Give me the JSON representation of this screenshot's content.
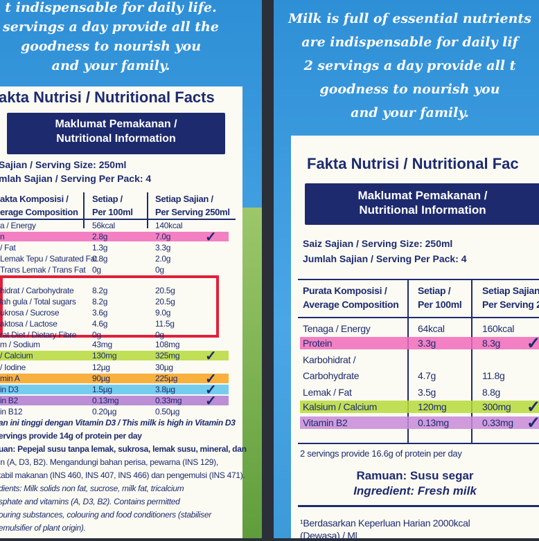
{
  "left": {
    "tagline": [
      "t indispensable for daily life.",
      "servings a day provide all the",
      "goodness to nourish you",
      "and your family."
    ],
    "facts_title": "akta Nutrisi / Nutritional Facts",
    "info_title": [
      "Maklumat Pemakanan /",
      "Nutritional Information"
    ],
    "serving": [
      "Sajian / Serving Size: 250ml",
      "mlah Sajian / Serving Per Pack: 4"
    ],
    "header": [
      [
        "akta Komposisi /",
        "erage Composition"
      ],
      [
        "Setiap /",
        "Per 100ml"
      ],
      [
        "Setiap Sajian /",
        "Per Serving 250ml"
      ]
    ],
    "rows": [
      {
        "cells": [
          "a / Energy",
          "56kcal",
          "140kcal"
        ]
      },
      {
        "cells": [
          "n",
          "2.8g",
          "7.0g"
        ],
        "highlight": "#f06aba"
      },
      {
        "cells": [
          "/ Fat",
          "1.3g",
          "3.3g"
        ]
      },
      {
        "cells": [
          "Lemak Tepu / Saturated Fat",
          "0.8g",
          "2.0g"
        ]
      },
      {
        "cells": [
          "Trans Lemak / Trans Fat",
          "0g",
          "0g"
        ]
      },
      {
        "cells": [
          "hidrat / Carbohydrate",
          "8.2g",
          "20.5g"
        ]
      },
      {
        "cells": [
          "lah gula / Total sugars",
          "8.2g",
          "20.5g"
        ]
      },
      {
        "cells": [
          "ukrosa / Sucrose",
          "3.6g",
          "9.0g"
        ]
      },
      {
        "cells": [
          "aktosa / Lactose",
          "4.6g",
          "11.5g"
        ]
      },
      {
        "cells": [
          "rat Diet / Dietary Fibre",
          "0g",
          "0g"
        ]
      },
      {
        "cells": [
          "m / Sodium",
          "43mg",
          "108mg"
        ]
      },
      {
        "cells": [
          "/ Calcium",
          "130mg",
          "325mg"
        ],
        "highlight": "#b6d93a"
      },
      {
        "cells": [
          "/ Iodine",
          "12µg",
          "30µg"
        ]
      },
      {
        "cells": [
          "min A",
          "90µg",
          "225µg"
        ],
        "highlight": "#f7a21e"
      },
      {
        "cells": [
          "in D3",
          "1.5µg",
          "3.8µg"
        ],
        "highlight": "#5cc3ec"
      },
      {
        "cells": [
          "in B2",
          "0.13mg",
          "0.33mg"
        ],
        "highlight": "#b07ad0"
      },
      {
        "cells": [
          "in B12",
          "0.20µg",
          "0.50µg"
        ]
      }
    ],
    "notes": [
      "an ini tinggi dengan Vitamin D3 / This milk is high in Vitamin D3",
      "ervings provide 14g of protein per day",
      "uan: Pepejal susu tanpa lemak, sukrosa, lemak susu, mineral, dan",
      "in (A, D3, B2). Mengandungi bahan perisa, pewarna (INS 129),",
      "tabil makanan (INS 460, INS 407, INS 466) dan pengemulsi (INS 471).",
      "dients: Milk solids non fat, sucrose, milk fat, tricalcium",
      "sphate and vitamins (A, D3, B2). Contains permitted",
      "ouring substances, colouring and food conditioners (stabiliser",
      "emulsifier of plant origin)."
    ]
  },
  "right": {
    "tagline": [
      "Milk is full of essential nutrients",
      "are indispensable for daily lif",
      "2 servings a day provide all t",
      "goodness to nourish you",
      "and your family."
    ],
    "facts_title": "Fakta Nutrisi / Nutritional Fac",
    "info_title": [
      "Maklumat Pemakanan /",
      "Nutritional Information"
    ],
    "serving": [
      "Saiz Sajian / Serving Size: 250ml",
      "Jumlah Sajian / Serving Per Pack: 4"
    ],
    "header": [
      [
        "Purata Komposisi /",
        "Average Composition"
      ],
      [
        "Setiap /",
        "Per 100ml"
      ],
      [
        "Setiap Sajian",
        "Per Serving 2"
      ]
    ],
    "rows": [
      {
        "cells": [
          "Tenaga / Energy",
          "64kcal",
          "160kcal"
        ]
      },
      {
        "cells": [
          "Protein",
          "3.3g",
          "8.3g"
        ],
        "highlight": "#f06aba"
      },
      {
        "cells": [
          "Karbohidrat /",
          "",
          ""
        ]
      },
      {
        "cells": [
          "Carbohydrate",
          "4.7g",
          "11.8g"
        ]
      },
      {
        "cells": [
          "Lemak / Fat",
          "3.5g",
          "8.8g"
        ]
      },
      {
        "cells": [
          "Kalsium / Calcium",
          "120mg",
          "300mg"
        ],
        "highlight": "#b6d93a"
      },
      {
        "cells": [
          "Vitamin B2",
          "0.13mg",
          "0.33mg"
        ],
        "highlight": "#c78ad8"
      }
    ],
    "protein_note": "2 servings provide 16.6g of protein per day",
    "ramuan": "Ramuan: Susu segar",
    "ingredient": "Ingredient: Fresh milk",
    "footnote": [
      "¹Berdasarkan Keperluan Harian 2000kcal",
      "(Dewasa) / Ml"
    ]
  }
}
